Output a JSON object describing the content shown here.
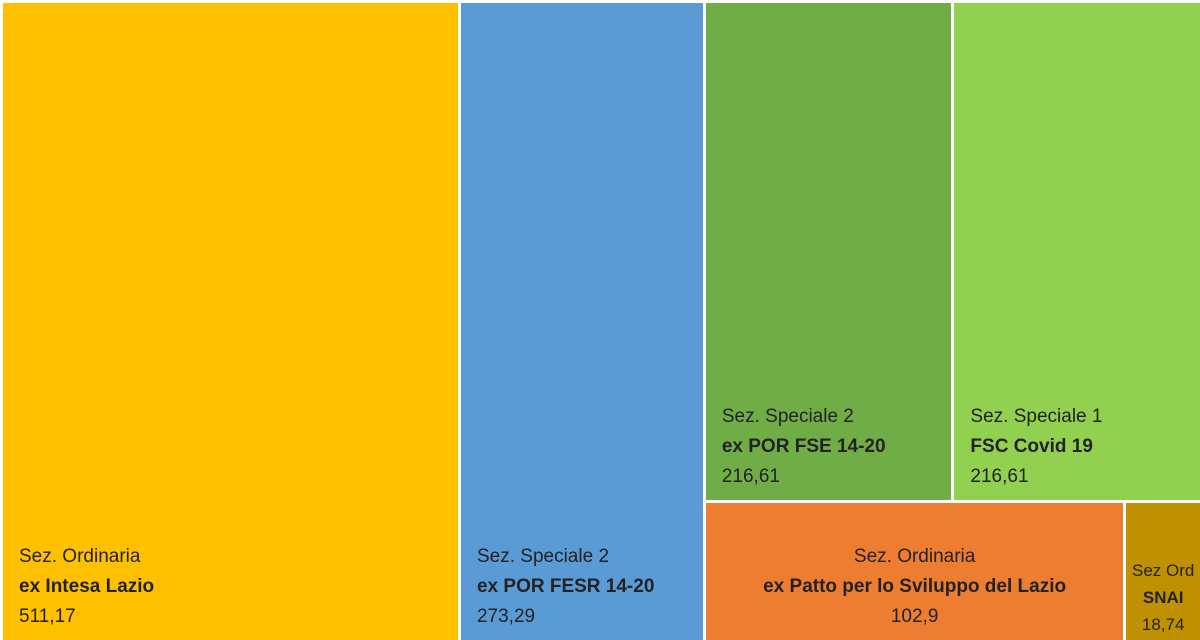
{
  "chart_data": {
    "type": "treemap",
    "tiles": [
      {
        "section": "Sez. Ordinaria",
        "name": "ex Intesa Lazio",
        "value": 511.17,
        "value_label": "511,17",
        "color": "#FFC000"
      },
      {
        "section": "Sez. Speciale 2",
        "name": "ex POR FESR 14-20",
        "value": 273.29,
        "value_label": "273,29",
        "color": "#5B9BD5"
      },
      {
        "section": "Sez. Speciale 2",
        "name": "ex POR FSE 14-20",
        "value": 216.61,
        "value_label": "216,61",
        "color": "#70AD47"
      },
      {
        "section": "Sez. Speciale 1",
        "name": "FSC Covid 19",
        "value": 216.61,
        "value_label": "216,61",
        "color": "#92D050"
      },
      {
        "section": "Sez. Ordinaria",
        "name": "ex Patto per lo Sviluppo del Lazio",
        "value": 102.9,
        "value_label": "102,9",
        "color": "#ED7D31"
      },
      {
        "section": "Sez Ord",
        "name": "SNAI",
        "value": 18.74,
        "value_label": "18,74",
        "color": "#BF9000"
      }
    ]
  }
}
